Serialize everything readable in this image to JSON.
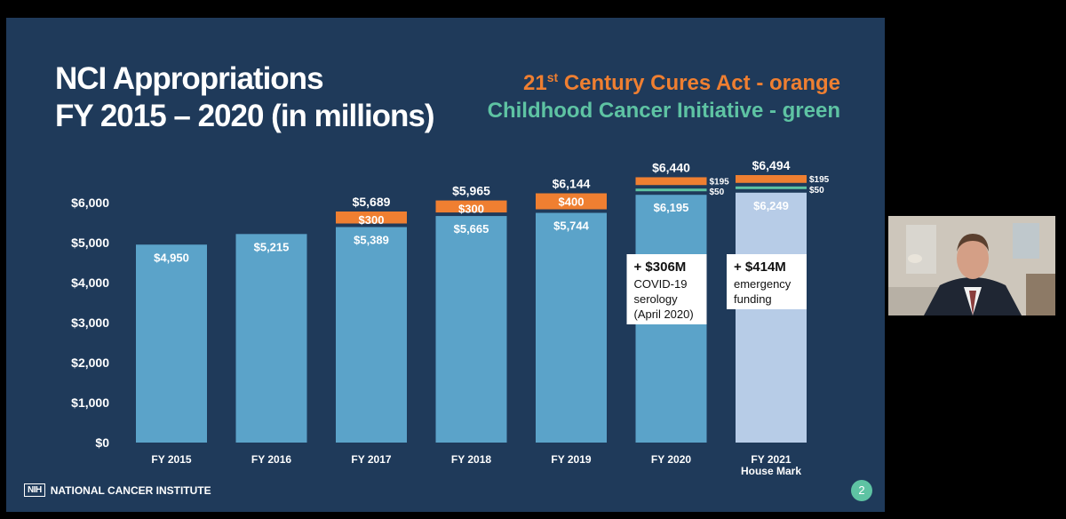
{
  "slide": {
    "title_line1": "NCI Appropriations",
    "title_line2": "FY 2015 – 2020 (in millions)",
    "legend_orange_pre": "21",
    "legend_orange_sup": "st",
    "legend_orange_post": " Century Cures Act - orange",
    "legend_green": "Childhood Cancer Initiative - green",
    "footer_logo": "NIH",
    "footer_org": "NATIONAL CANCER INSTITUTE",
    "page_number": "2"
  },
  "colors": {
    "background": "#1f3a5a",
    "base_bar": "#5ba3c9",
    "house_bar": "#b7cce7",
    "cures": "#ef7f31",
    "childhood": "#5ec3a3"
  },
  "chart_data": {
    "type": "bar",
    "ylim": [
      0,
      6000
    ],
    "yticks": [
      "$0",
      "$1,000",
      "$2,000",
      "$3,000",
      "$4,000",
      "$5,000",
      "$6,000"
    ],
    "yvalues": [
      0,
      1000,
      2000,
      3000,
      4000,
      5000,
      6000
    ],
    "categories": [
      {
        "line1": "FY 2015",
        "line2": ""
      },
      {
        "line1": "FY 2016",
        "line2": ""
      },
      {
        "line1": "FY 2017",
        "line2": ""
      },
      {
        "line1": "FY 2018",
        "line2": ""
      },
      {
        "line1": "FY 2019",
        "line2": ""
      },
      {
        "line1": "FY 2020",
        "line2": ""
      },
      {
        "line1": "FY 2021",
        "line2": "House Mark"
      }
    ],
    "series": [
      {
        "name": "base",
        "values": [
          4950,
          5215,
          5389,
          5665,
          5744,
          6195,
          6249
        ],
        "labels": [
          "$4,950",
          "$5,215",
          "$5,389",
          "$5,665",
          "$5,744",
          "$6,195",
          "$6,249"
        ]
      },
      {
        "name": "Childhood Cancer Initiative",
        "values": [
          0,
          0,
          0,
          0,
          0,
          50,
          50
        ],
        "labels": [
          "",
          "",
          "",
          "",
          "",
          "$50",
          "$50"
        ]
      },
      {
        "name": "21st Century Cures Act",
        "values": [
          0,
          0,
          300,
          300,
          400,
          195,
          195
        ],
        "labels": [
          "",
          "",
          "$300",
          "$300",
          "$400",
          "$195",
          "$195"
        ]
      }
    ],
    "totals": [
      "",
      "",
      "$5,689",
      "$5,965",
      "$6,144",
      "$6,440",
      "$6,494"
    ],
    "annotations": [
      {
        "bar": 5,
        "headline": "+ $306M",
        "lines": [
          "COVID-19",
          "serology",
          "(April 2020)"
        ]
      },
      {
        "bar": 6,
        "headline": "+ $414M",
        "lines": [
          "emergency",
          "funding"
        ]
      }
    ]
  },
  "webcam": {
    "description_icon": "presenter-video"
  }
}
